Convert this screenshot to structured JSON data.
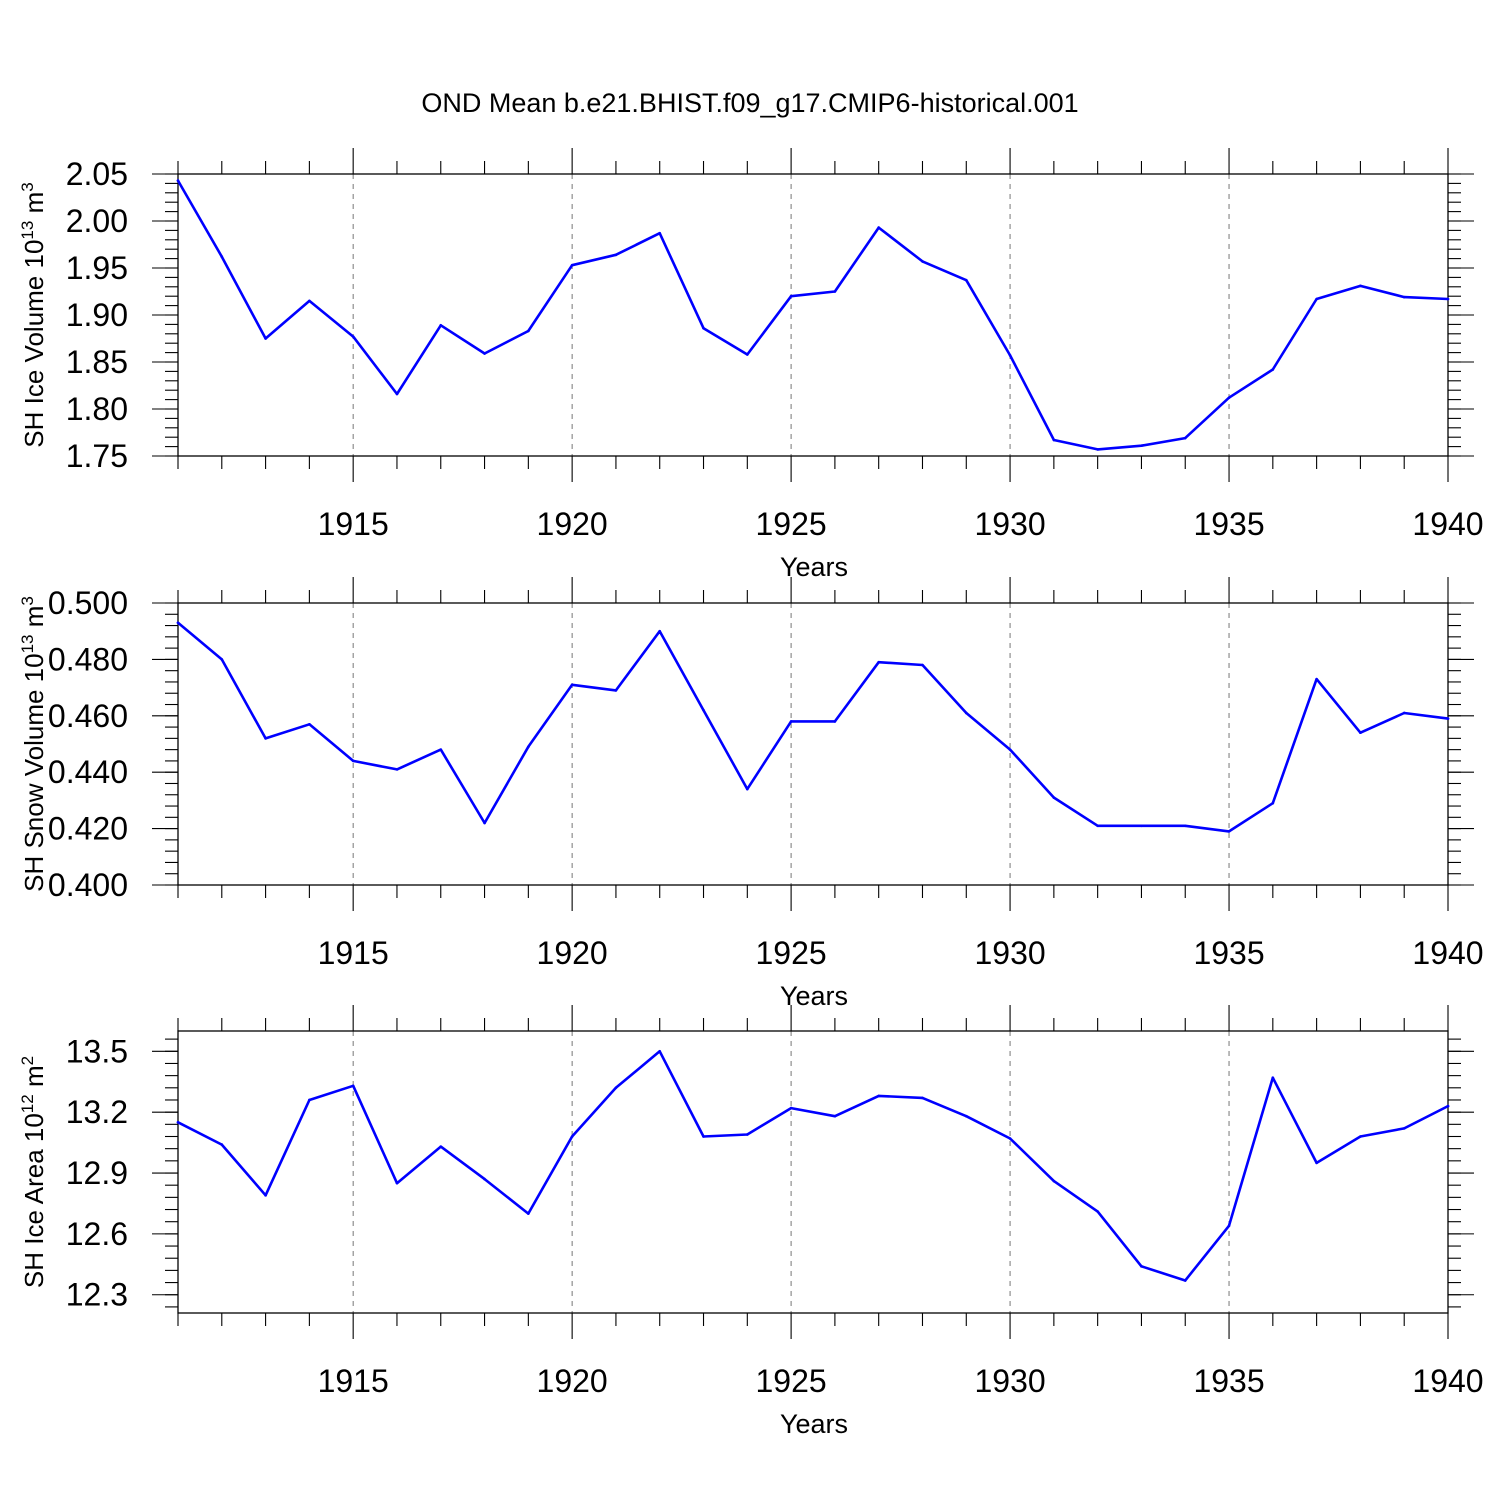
{
  "title": "OND Mean b.e21.BHIST.f09_g17.CMIP6-historical.001",
  "line_color": "#0000ff",
  "chart_data": [
    {
      "type": "line",
      "xlabel": "Years",
      "ylabel": {
        "text": "SH Ice Volume 10",
        "sup": "13",
        "unit": " m",
        "unit_sup": "3"
      },
      "xlim": [
        1911,
        1940
      ],
      "ylim": [
        1.75,
        2.05
      ],
      "xticks": [
        "1915",
        "1920",
        "1925",
        "1930",
        "1935",
        "1940"
      ],
      "yticks": [
        "1.75",
        "1.80",
        "1.85",
        "1.90",
        "1.95",
        "2.00",
        "2.05"
      ],
      "grid": "vertical dashed at major x ticks",
      "x": [
        1911,
        1912,
        1913,
        1914,
        1915,
        1916,
        1917,
        1918,
        1919,
        1920,
        1921,
        1922,
        1923,
        1924,
        1925,
        1926,
        1927,
        1928,
        1929,
        1930,
        1931,
        1932,
        1933,
        1934,
        1935,
        1936,
        1937,
        1938,
        1939,
        1940
      ],
      "values": [
        2.043,
        1.962,
        1.875,
        1.915,
        1.877,
        1.816,
        1.889,
        1.859,
        1.883,
        1.953,
        1.964,
        1.987,
        1.886,
        1.858,
        1.92,
        1.925,
        1.993,
        1.957,
        1.937,
        1.857,
        1.767,
        1.757,
        1.761,
        1.769,
        1.812,
        1.842,
        1.917,
        1.931,
        1.919,
        1.917
      ]
    },
    {
      "type": "line",
      "xlabel": "Years",
      "ylabel": {
        "text": "SH Snow Volume 10",
        "sup": "13",
        "unit": " m",
        "unit_sup": "3"
      },
      "xlim": [
        1911,
        1940
      ],
      "ylim": [
        0.4,
        0.5
      ],
      "xticks": [
        "1915",
        "1920",
        "1925",
        "1930",
        "1935",
        "1940"
      ],
      "yticks": [
        "0.400",
        "0.420",
        "0.440",
        "0.460",
        "0.480",
        "0.500"
      ],
      "grid": "vertical dashed at major x ticks",
      "x": [
        1911,
        1912,
        1913,
        1914,
        1915,
        1916,
        1917,
        1918,
        1919,
        1920,
        1921,
        1922,
        1923,
        1924,
        1925,
        1926,
        1927,
        1928,
        1929,
        1930,
        1931,
        1932,
        1933,
        1934,
        1935,
        1936,
        1937,
        1938,
        1939,
        1940
      ],
      "values": [
        0.493,
        0.48,
        0.452,
        0.457,
        0.444,
        0.441,
        0.448,
        0.422,
        0.449,
        0.471,
        0.469,
        0.49,
        0.462,
        0.434,
        0.458,
        0.458,
        0.479,
        0.478,
        0.461,
        0.448,
        0.431,
        0.421,
        0.421,
        0.421,
        0.419,
        0.429,
        0.473,
        0.454,
        0.461,
        0.459
      ]
    },
    {
      "type": "line",
      "xlabel": "Years",
      "ylabel": {
        "text": "SH Ice Area 10",
        "sup": "12",
        "unit": " m",
        "unit_sup": "2"
      },
      "xlim": [
        1911,
        1940
      ],
      "ylim": [
        12.21,
        13.6
      ],
      "xticks": [
        "1915",
        "1920",
        "1925",
        "1930",
        "1935",
        "1940"
      ],
      "yticks": [
        "12.3",
        "12.6",
        "12.9",
        "13.2",
        "13.5"
      ],
      "grid": "vertical dashed at major x ticks",
      "x": [
        1911,
        1912,
        1913,
        1914,
        1915,
        1916,
        1917,
        1918,
        1919,
        1920,
        1921,
        1922,
        1923,
        1924,
        1925,
        1926,
        1927,
        1928,
        1929,
        1930,
        1931,
        1932,
        1933,
        1934,
        1935,
        1936,
        1937,
        1938,
        1939,
        1940
      ],
      "values": [
        13.15,
        13.04,
        12.79,
        13.26,
        13.33,
        12.85,
        13.03,
        12.87,
        12.7,
        13.08,
        13.32,
        13.5,
        13.08,
        13.09,
        13.22,
        13.18,
        13.28,
        13.27,
        13.18,
        13.07,
        12.86,
        12.71,
        12.44,
        12.37,
        12.64,
        13.37,
        12.95,
        13.08,
        13.12,
        13.23
      ]
    }
  ]
}
